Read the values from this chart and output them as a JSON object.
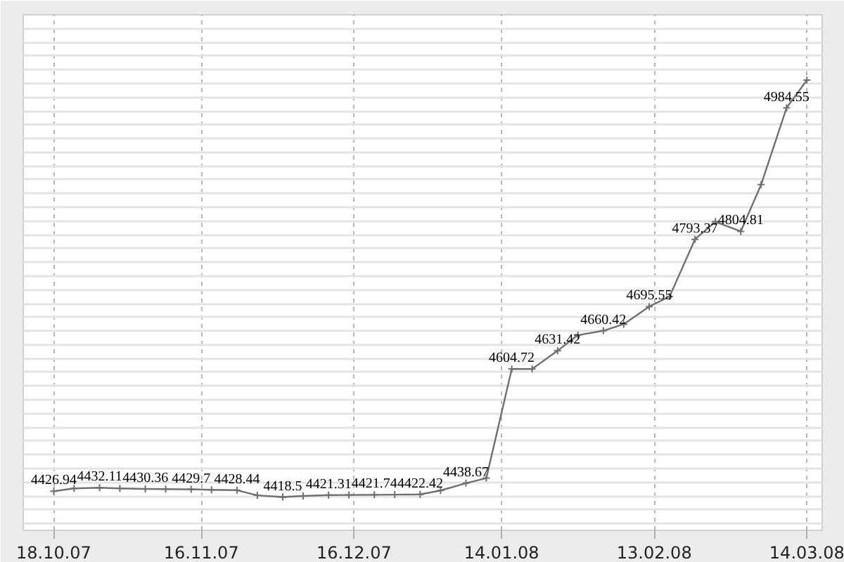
{
  "chart_data": {
    "type": "line",
    "x": [
      "2007-10-18",
      "2007-10-22",
      "2007-10-27",
      "2007-10-31",
      "2007-11-05",
      "2007-11-09",
      "2007-11-14",
      "2007-11-18",
      "2007-11-23",
      "2007-11-27",
      "2007-12-02",
      "2007-12-06",
      "2007-12-11",
      "2007-12-15",
      "2007-12-20",
      "2007-12-24",
      "2007-12-29",
      "2008-01-02",
      "2008-01-07",
      "2008-01-11",
      "2008-01-16",
      "2008-01-20",
      "2008-01-25",
      "2008-01-29",
      "2008-02-03",
      "2008-02-07",
      "2008-02-12",
      "2008-02-16",
      "2008-02-21",
      "2008-02-25",
      "2008-03-01",
      "2008-03-05",
      "2008-03-10",
      "2008-03-14"
    ],
    "series": [
      {
        "color": "#707070",
        "values": [
          4426.94,
          4431,
          4432.11,
          4431,
          4430.36,
          4430,
          4429.7,
          4429,
          4428.44,
          4421,
          4418.5,
          4420,
          4421.31,
          4421.5,
          4421.74,
          4422,
          4422.42,
          4428,
          4438.67,
          4446,
          4604.72,
          4604.72,
          4631.42,
          4654,
          4660.42,
          4670,
          4695.55,
          4710,
          4793.37,
          4819,
          4804.81,
          4873,
          4984.55,
          5025
        ],
        "value_labels": [
          "4426.94",
          null,
          "4432.11",
          null,
          "4430.36",
          null,
          "4429.7",
          null,
          "4428.44",
          null,
          "4418.5",
          null,
          "4421.31",
          null,
          "4421.74",
          null,
          "4422.42",
          null,
          "4438.67",
          null,
          "4604.72",
          null,
          "4631.42",
          null,
          "4660.42",
          null,
          "4695.55",
          null,
          "4793.37",
          null,
          "4804.81",
          null,
          "4984.55",
          null
        ]
      }
    ],
    "xlim": [
      "2007-10-12",
      "2008-03-17"
    ],
    "xticks": [
      {
        "value": "2007-10-18",
        "label": "18.10.07"
      },
      {
        "value": "2007-11-16",
        "label": "16.11.07"
      },
      {
        "value": "2007-12-16",
        "label": "16.12.07"
      },
      {
        "value": "2008-01-14",
        "label": "14.01.08"
      },
      {
        "value": "2008-02-13",
        "label": "13.02.08"
      },
      {
        "value": "2008-03-14",
        "label": "14.03.08"
      }
    ],
    "ylim": [
      4370,
      5120
    ],
    "yticks": [
      {
        "value": 4380,
        "label": null
      },
      {
        "value": 4400,
        "label": null
      },
      {
        "value": 4420,
        "label": null
      },
      {
        "value": 4440,
        "label": null
      },
      {
        "value": 4460,
        "label": null
      },
      {
        "value": 4480,
        "label": null
      },
      {
        "value": 4500,
        "label": null
      },
      {
        "value": 4520,
        "label": null
      },
      {
        "value": 4540,
        "label": null
      },
      {
        "value": 4560,
        "label": null
      },
      {
        "value": 4580,
        "label": null
      },
      {
        "value": 4600,
        "label": null
      },
      {
        "value": 4620,
        "label": null
      },
      {
        "value": 4640,
        "label": null
      },
      {
        "value": 4660,
        "label": null
      },
      {
        "value": 4680,
        "label": null
      },
      {
        "value": 4700,
        "label": null
      },
      {
        "value": 4720,
        "label": null
      },
      {
        "value": 4740,
        "label": null
      },
      {
        "value": 4760,
        "label": null
      },
      {
        "value": 4780,
        "label": null
      },
      {
        "value": 4800,
        "label": null
      },
      {
        "value": 4820,
        "label": null
      },
      {
        "value": 4840,
        "label": null
      },
      {
        "value": 4860,
        "label": null
      },
      {
        "value": 4880,
        "label": null
      },
      {
        "value": 4900,
        "label": null
      },
      {
        "value": 4920,
        "label": null
      },
      {
        "value": 4940,
        "label": null
      },
      {
        "value": 4960,
        "label": null
      },
      {
        "value": 4980,
        "label": null
      },
      {
        "value": 5000,
        "label": null
      },
      {
        "value": 5020,
        "label": null
      },
      {
        "value": 5040,
        "label": null
      },
      {
        "value": 5060,
        "label": null
      },
      {
        "value": 5080,
        "label": null
      },
      {
        "value": 5100,
        "label": null
      }
    ],
    "tick_labels": "x",
    "grid": true,
    "marker": "cross",
    "line_style": "solid"
  }
}
